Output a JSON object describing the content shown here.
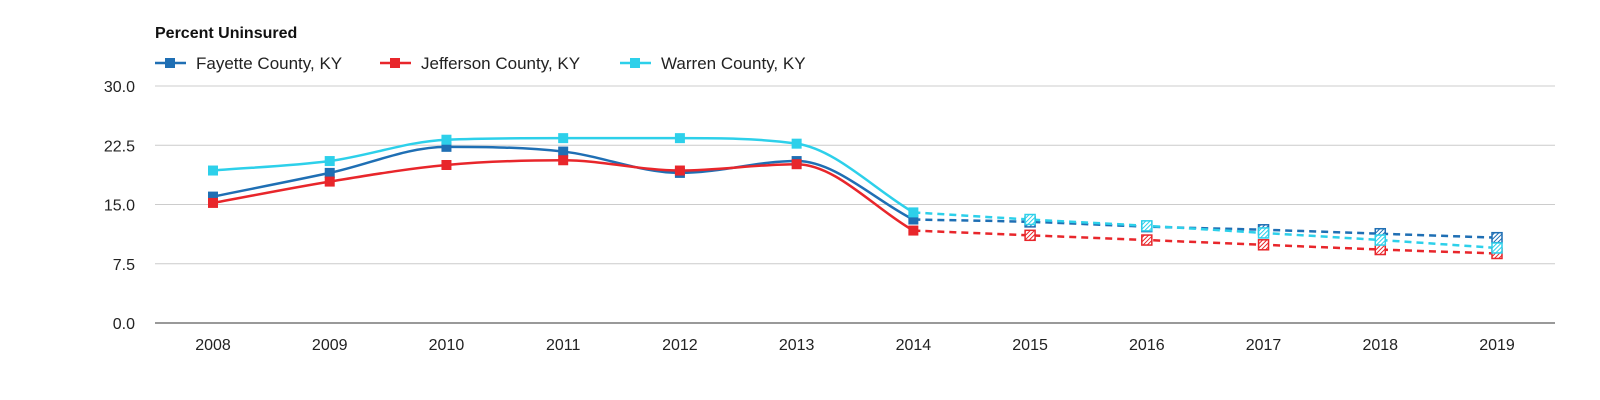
{
  "chart_data": {
    "type": "line",
    "title": "Percent Uninsured",
    "xlabel": "",
    "ylabel": "",
    "ylim": [
      0,
      30
    ],
    "yticks": [
      "0.0",
      "7.5",
      "15.0",
      "22.5",
      "30.0"
    ],
    "grid": true,
    "legend_position": "top-left",
    "categories": [
      "2008",
      "2009",
      "2010",
      "2011",
      "2012",
      "2013",
      "2014",
      "2015",
      "2016",
      "2017",
      "2018",
      "2019"
    ],
    "projected_from": "2014",
    "series": [
      {
        "name": "Fayette County, KY",
        "color": "#1f6fb4",
        "values": [
          16.0,
          19.0,
          22.3,
          21.7,
          19.0,
          20.5,
          13.1,
          12.8,
          12.2,
          11.8,
          11.3,
          10.8
        ]
      },
      {
        "name": "Jefferson County, KY",
        "color": "#e8262b",
        "values": [
          15.2,
          17.9,
          20.0,
          20.6,
          19.3,
          20.1,
          11.7,
          11.1,
          10.5,
          9.9,
          9.3,
          8.8
        ]
      },
      {
        "name": "Warren County, KY",
        "color": "#2dd0ea",
        "values": [
          19.3,
          20.5,
          23.2,
          23.4,
          23.4,
          22.7,
          14.0,
          13.1,
          12.3,
          11.4,
          10.5,
          9.5
        ]
      }
    ]
  }
}
